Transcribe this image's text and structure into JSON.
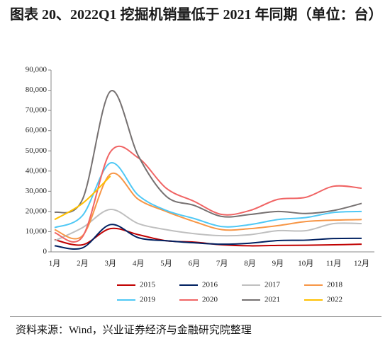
{
  "chart_data": {
    "type": "line",
    "title": "图表 20、2022Q1 挖掘机销量低于 2021 年同期（单位：台）",
    "source": "资料来源：Wind，兴业证券经济与金融研究院整理",
    "categories": [
      "1月",
      "2月",
      "3月",
      "4月",
      "5月",
      "6月",
      "7月",
      "8月",
      "9月",
      "10月",
      "11月",
      "12月"
    ],
    "ylim": [
      0,
      90000
    ],
    "yticks": [
      0,
      {
        "value": 10000,
        "label": "10,000"
      },
      {
        "value": 20000,
        "label": "20,000"
      },
      {
        "value": 30000,
        "label": "30,000"
      },
      {
        "value": 40000,
        "label": "40,000"
      },
      {
        "value": 50000,
        "label": "50,000"
      },
      {
        "value": 60000,
        "label": "60,000"
      },
      {
        "value": 70000,
        "label": "70,000"
      },
      {
        "value": 80000,
        "label": "80,000"
      },
      {
        "value": 90000,
        "label": "90,000"
      }
    ],
    "legend": "bottom",
    "series": [
      {
        "name": "2015",
        "color": "#c00000",
        "values": [
          6000,
          3500,
          11500,
          8500,
          5500,
          4800,
          3500,
          3000,
          3200,
          3300,
          3500,
          3800
        ]
      },
      {
        "name": "2016",
        "color": "#002060",
        "values": [
          3000,
          2000,
          13500,
          7000,
          5500,
          4500,
          3800,
          4300,
          5600,
          5800,
          6600,
          6700
        ]
      },
      {
        "name": "2017",
        "color": "#bfbfbf",
        "values": [
          5500,
          12000,
          21000,
          14000,
          11000,
          9000,
          8000,
          8500,
          10500,
          10500,
          14000,
          14000
        ]
      },
      {
        "name": "2018",
        "color": "#f79646",
        "values": [
          11000,
          8000,
          38500,
          26000,
          20000,
          15000,
          11000,
          11500,
          13000,
          15000,
          15700,
          16000
        ]
      },
      {
        "name": "2019",
        "color": "#4fc8f5",
        "values": [
          12000,
          18000,
          44000,
          28000,
          20500,
          16500,
          12500,
          13500,
          16000,
          17000,
          19500,
          20000
        ]
      },
      {
        "name": "2020",
        "color": "#f06464",
        "values": [
          9500,
          7500,
          49500,
          46500,
          31500,
          25000,
          18500,
          20500,
          26000,
          27000,
          32500,
          31500
        ]
      },
      {
        "name": "2021",
        "color": "#767171",
        "values": [
          19500,
          26000,
          79500,
          47500,
          27500,
          23000,
          17500,
          18500,
          20000,
          19000,
          20500,
          24000
        ]
      },
      {
        "name": "2022",
        "color": "#ffc000",
        "values": [
          16000,
          24000,
          37500,
          null,
          null,
          null,
          null,
          null,
          null,
          null,
          null,
          null
        ]
      }
    ]
  }
}
